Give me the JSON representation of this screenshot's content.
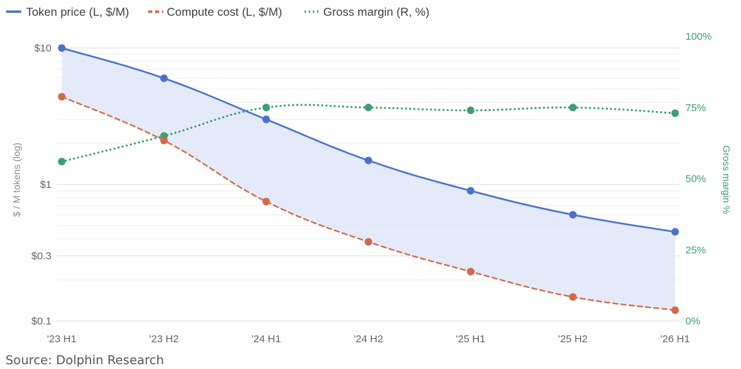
{
  "chart_data": {
    "type": "line",
    "categories": [
      "'23 H1",
      "'23 H2",
      "'24 H1",
      "'24 H2",
      "'25 H1",
      "'25 H2",
      "'26 H1"
    ],
    "series": [
      {
        "name": "Token price (L, $/M)",
        "axis": "left",
        "style": "solid",
        "color": "#4a72cc",
        "values": [
          10,
          6.0,
          3.0,
          1.5,
          0.9,
          0.6,
          0.45
        ]
      },
      {
        "name": "Compute cost (L, $/M)",
        "axis": "left",
        "style": "dashed",
        "color": "#d3694a",
        "values": [
          4.4,
          2.1,
          0.75,
          0.38,
          0.23,
          0.15,
          0.12
        ]
      },
      {
        "name": "Gross margin (R, %)",
        "axis": "right",
        "style": "dotted",
        "color": "#3f9e72",
        "values": [
          56,
          65,
          75,
          75,
          74,
          75,
          73
        ]
      }
    ],
    "shaded_area": {
      "between": [
        "Token price (L, $/M)",
        "Compute cost (L, $/M)"
      ],
      "color": "#dfe6f6"
    },
    "left_axis": {
      "label": "$ / M tokens (log)",
      "scale": "log",
      "range": [
        0.1,
        10
      ],
      "ticks": [
        10,
        1,
        0.3,
        0.1
      ],
      "tick_labels": [
        "$10",
        "$1",
        "$0.3",
        "$0.1"
      ]
    },
    "right_axis": {
      "label": "Gross margin %",
      "scale": "linear",
      "range": [
        0,
        100
      ],
      "ticks": [
        100,
        75,
        50,
        25,
        0
      ],
      "tick_labels": [
        "100%",
        "75%",
        "50%",
        "25%",
        "0%"
      ]
    },
    "legend": {
      "position": "top-left",
      "entries": [
        "Token price (L, $/M)",
        "Compute cost (L, $/M)",
        "Gross margin (R, %)"
      ]
    },
    "grid": true
  },
  "source": "Source:   Dolphin Research"
}
